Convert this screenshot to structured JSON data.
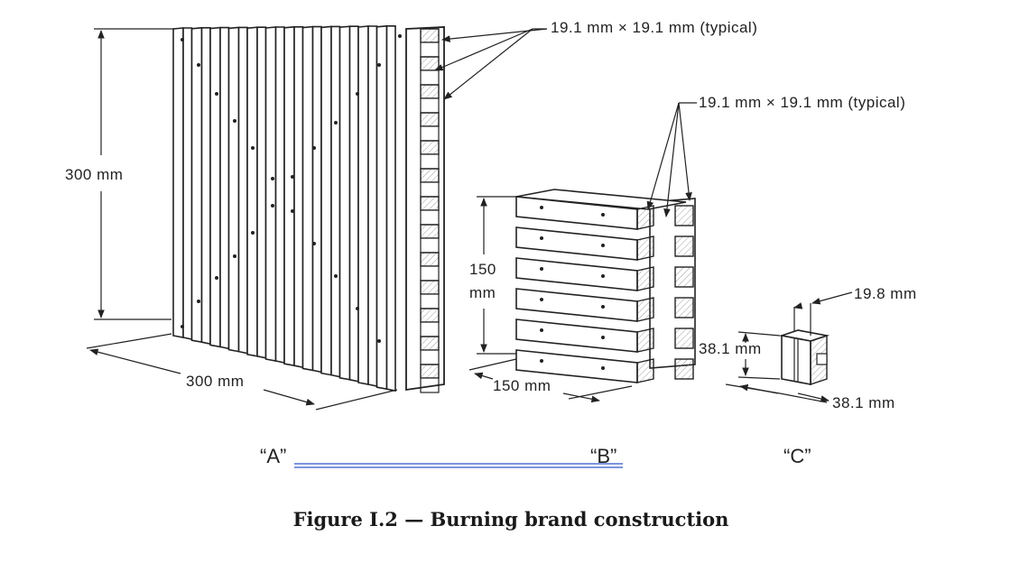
{
  "figure": {
    "caption": "Figure I.2 — Burning brand construction",
    "labels": {
      "a": "“A”",
      "b": "“B”",
      "c": "“C”"
    },
    "brand_a": {
      "height": "300  mm",
      "width": "300  mm",
      "typical": "19.1  mm  ×  19.1  mm  (typical)"
    },
    "brand_b": {
      "height_line1": "150",
      "height_line2": "mm",
      "width": "150  mm",
      "typical": "19.1  mm  ×  19.1  mm  (typical)"
    },
    "brand_c": {
      "slot": "19.8  mm",
      "height": "38.1 mm",
      "width": "38.1  mm"
    }
  }
}
